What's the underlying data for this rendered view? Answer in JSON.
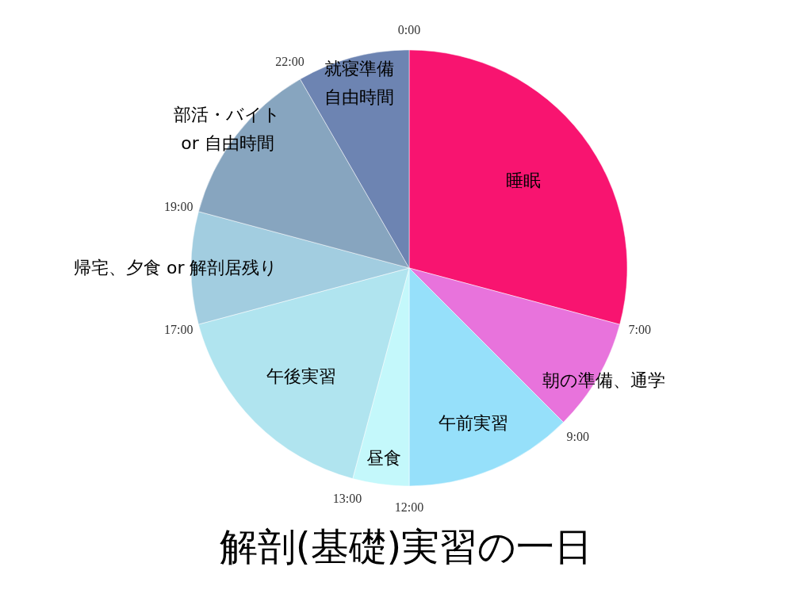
{
  "chart_data": {
    "type": "pie",
    "title": "解剖(基礎)実習の一日",
    "categories": [
      "睡眠",
      "朝の準備、通学",
      "午前実習",
      "昼食",
      "午後実習",
      "帰宅、夕食 or 解剖居残り",
      "部活・バイト\nor 自由時間",
      "就寝準備自由時間"
    ],
    "values": [
      29.17,
      8.33,
      12.5,
      4.17,
      16.67,
      8.33,
      12.5,
      8.33
    ],
    "colors": [
      "#f81470",
      "#e873dc",
      "#96e0fa",
      "#c4f8fb",
      "#b0e4ef",
      "#a2cde0",
      "#87a5bf",
      "#6d84b2"
    ],
    "annotations": [
      "0:00",
      "7:00",
      "9:00",
      "12:00",
      "13:00",
      "17:00",
      "19:00",
      "22:00"
    ],
    "legend": false
  }
}
